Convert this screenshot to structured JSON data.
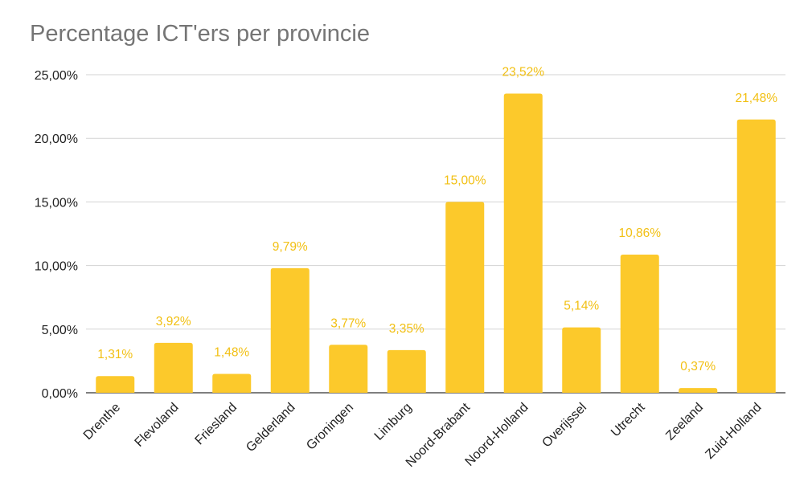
{
  "chart_data": {
    "type": "bar",
    "title": "Percentage ICT'ers per provincie",
    "categories": [
      "Drenthe",
      "Flevoland",
      "Friesland",
      "Gelderland",
      "Groningen",
      "Limburg",
      "Noord-Brabant",
      "Noord-Holland",
      "Overijssel",
      "Utrecht",
      "Zeeland",
      "Zuid-Holland"
    ],
    "values": [
      1.31,
      3.92,
      1.48,
      9.79,
      3.77,
      3.35,
      15.0,
      23.52,
      5.14,
      10.86,
      0.37,
      21.48
    ],
    "data_labels": [
      "1,31%",
      "3,92%",
      "1,48%",
      "9,79%",
      "3,77%",
      "3,35%",
      "15,00%",
      "23,52%",
      "5,14%",
      "10,86%",
      "0,37%",
      "21,48%"
    ],
    "ylim": [
      0,
      25
    ],
    "yticks": [
      0,
      5,
      10,
      15,
      20,
      25
    ],
    "ytick_labels": [
      "0,00%",
      "5,00%",
      "10,00%",
      "15,00%",
      "20,00%",
      "25,00%"
    ],
    "xlabel": "",
    "ylabel": "",
    "grid": true,
    "legend": "none",
    "bar_color": "#fcc92b",
    "label_color": "#f2c014",
    "grid_color": "#d3d3d3"
  }
}
